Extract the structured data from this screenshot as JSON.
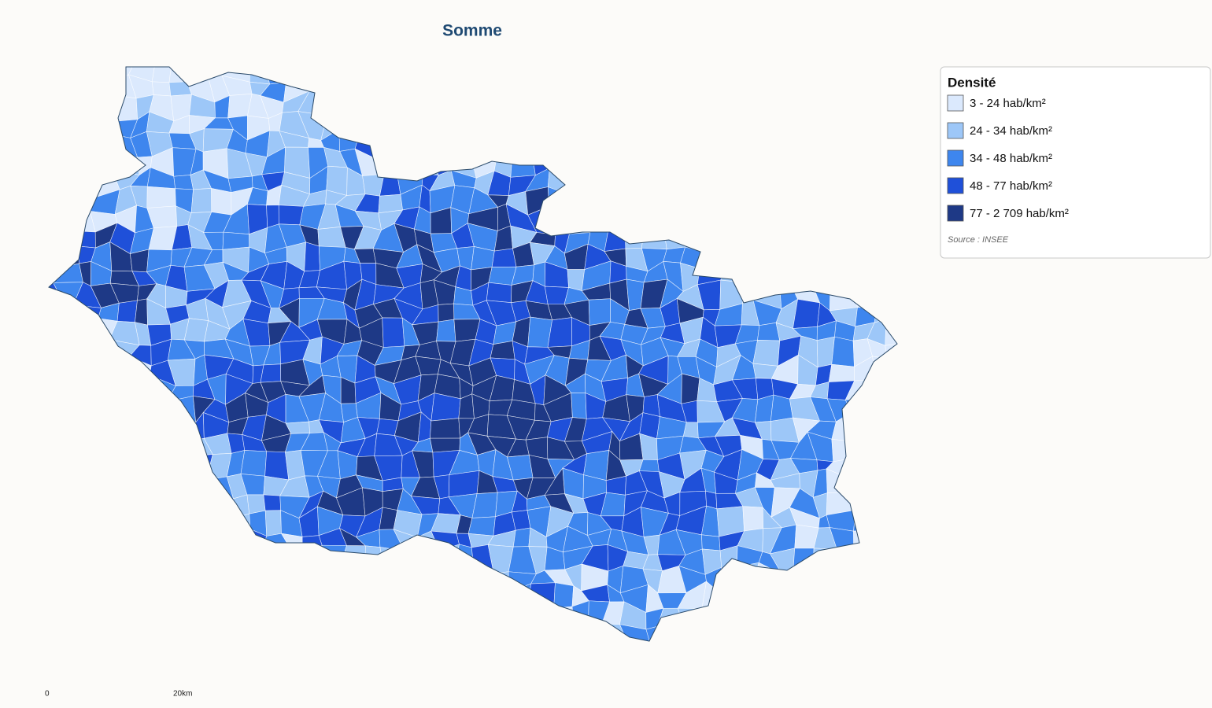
{
  "title": "Somme",
  "legend": {
    "title": "Densité",
    "items": [
      {
        "label": "3 - 24 hab/km²",
        "color": "#dbe9fd"
      },
      {
        "label": "24 - 34 hab/km²",
        "color": "#9dc7f8"
      },
      {
        "label": "34 - 48 hab/km²",
        "color": "#3e86ee"
      },
      {
        "label": "48 - 77 hab/km²",
        "color": "#1f50d9"
      },
      {
        "label": "77 - 2 709 hab/km²",
        "color": "#1e3986"
      }
    ],
    "source": "Source : INSEE"
  },
  "scale": {
    "start": "0",
    "end": "20km"
  }
}
